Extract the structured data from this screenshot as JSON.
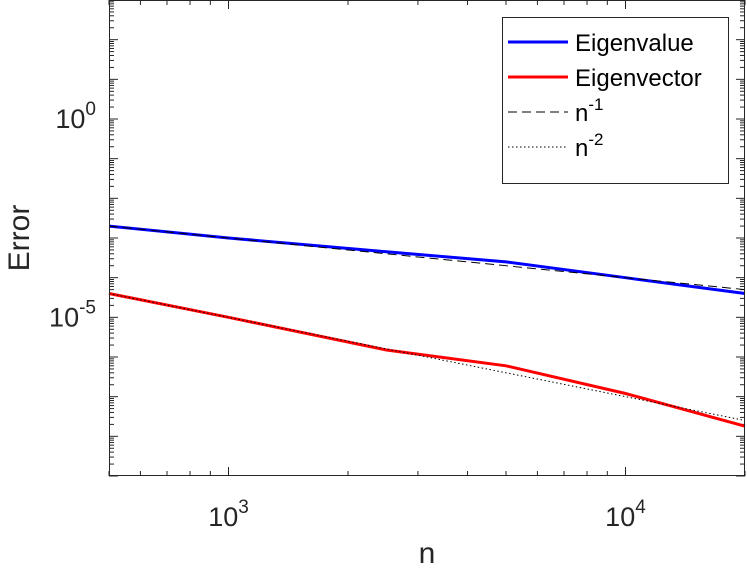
{
  "chart_data": {
    "type": "line",
    "xlabel": "n",
    "ylabel": "Error",
    "xscale": "log",
    "yscale": "log",
    "xlim": [
      500,
      20000
    ],
    "ylim": [
      1e-09,
      1000
    ],
    "grid": false,
    "legend_position": "top-right",
    "x_ticks": [
      {
        "value": 1000,
        "base": "10",
        "exponent": "3"
      },
      {
        "value": 10000,
        "base": "10",
        "exponent": "4"
      }
    ],
    "y_ticks": [
      {
        "value": 1,
        "base": "10",
        "exponent": "0"
      },
      {
        "value": 1e-05,
        "base": "10",
        "exponent": "-5"
      }
    ],
    "series": [
      {
        "name": "Eigenvalue",
        "color": "#0000ff",
        "style": "solid",
        "x": [
          500,
          1000,
          2500,
          5000,
          10000,
          20000
        ],
        "y": [
          0.002,
          0.001,
          0.00045,
          0.00025,
          0.0001,
          4e-05
        ]
      },
      {
        "name": "Eigenvector",
        "color": "#ff0000",
        "style": "solid",
        "x": [
          500,
          1000,
          2500,
          5000,
          10000,
          20000
        ],
        "y": [
          4e-05,
          1e-05,
          1.5e-06,
          6e-07,
          1.2e-07,
          1.8e-08
        ]
      },
      {
        "name": "n",
        "name_exponent": "-1",
        "color": "#000000",
        "style": "dashed",
        "x": [
          500,
          20000
        ],
        "y": [
          0.002,
          5e-05
        ]
      },
      {
        "name": "n",
        "name_exponent": "-2",
        "color": "#000000",
        "style": "dotted",
        "x": [
          500,
          20000
        ],
        "y": [
          4e-05,
          2.5e-08
        ]
      }
    ]
  }
}
